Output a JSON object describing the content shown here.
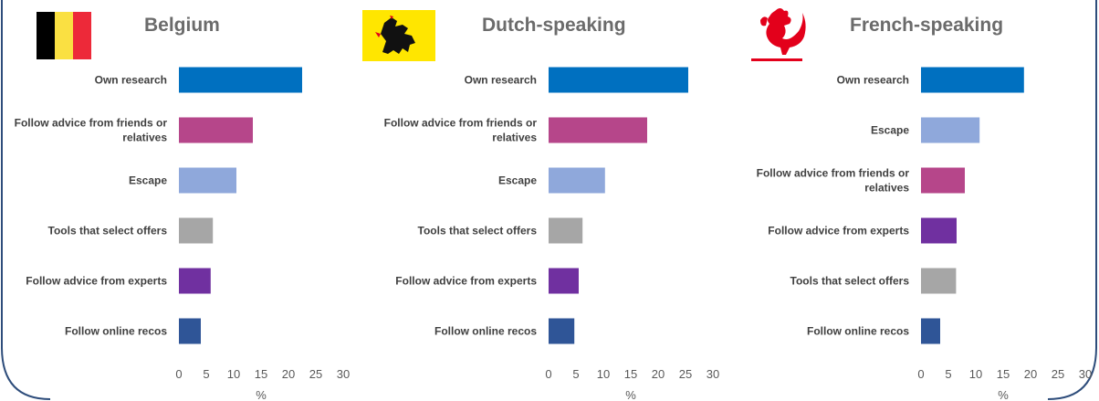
{
  "chart_data": [
    {
      "type": "bar",
      "orientation": "horizontal",
      "title": "Belgium",
      "flag": "belgium-flag",
      "categories": [
        "Own research",
        "Follow advice from friends or relatives",
        "Escape",
        "Tools that select offers",
        "Follow advice from experts",
        "Follow online recos"
      ],
      "values": [
        22.5,
        13.5,
        10.5,
        6.2,
        5.8,
        4.0
      ],
      "colors": [
        "#0070C0",
        "#B6468A",
        "#8FA8DB",
        "#A6A6A6",
        "#7030A0",
        "#2F5597"
      ],
      "xlim": [
        0,
        30
      ],
      "xticks": [
        "0",
        "5",
        "10",
        "15",
        "20",
        "25",
        "30"
      ],
      "xlabel": "%"
    },
    {
      "type": "bar",
      "orientation": "horizontal",
      "title": "Dutch-speaking",
      "flag": "flanders-lion-flag",
      "categories": [
        "Own research",
        "Follow advice from friends or relatives",
        "Escape",
        "Tools that select offers",
        "Follow advice from experts",
        "Follow online recos"
      ],
      "values": [
        25.5,
        18.0,
        10.3,
        6.2,
        5.5,
        4.7
      ],
      "colors": [
        "#0070C0",
        "#B6468A",
        "#8FA8DB",
        "#A6A6A6",
        "#7030A0",
        "#2F5597"
      ],
      "xlim": [
        0,
        30
      ],
      "xticks": [
        "0",
        "5",
        "10",
        "15",
        "20",
        "25",
        "30"
      ],
      "xlabel": "%"
    },
    {
      "type": "bar",
      "orientation": "horizontal",
      "title": "French-speaking",
      "flag": "wallonia-rooster-flag",
      "categories": [
        "Own research",
        "Escape",
        "Follow advice from friends or relatives",
        "Follow advice from experts",
        "Tools that select offers",
        "Follow online recos"
      ],
      "values": [
        18.8,
        10.7,
        8.0,
        6.5,
        6.4,
        3.5
      ],
      "colors": [
        "#0070C0",
        "#8FA8DB",
        "#B6468A",
        "#7030A0",
        "#A6A6A6",
        "#2F5597"
      ],
      "xlim": [
        0,
        30
      ],
      "xticks": [
        "0",
        "5",
        "10",
        "15",
        "20",
        "25",
        "30"
      ],
      "xlabel": "%"
    }
  ]
}
